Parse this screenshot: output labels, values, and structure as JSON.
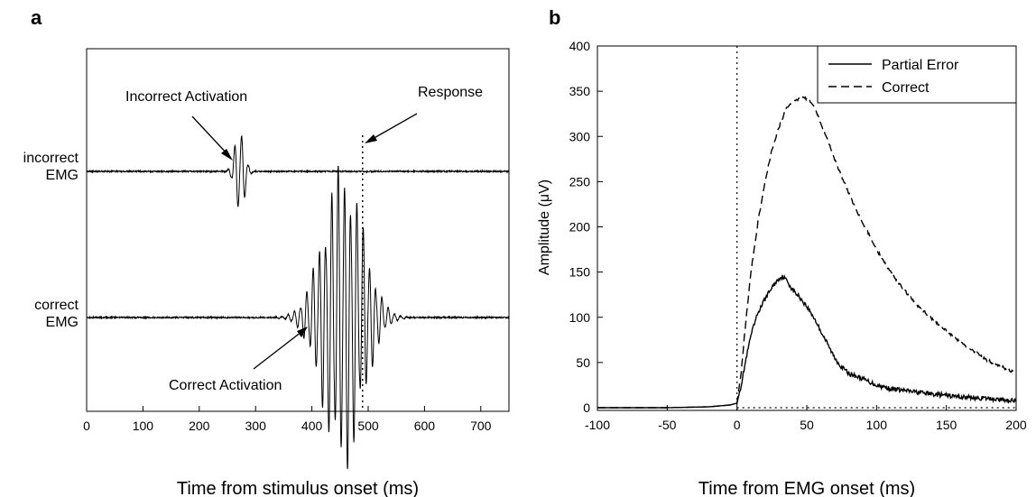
{
  "chart_data": [
    {
      "panel_label": "a",
      "type": "line",
      "xlabel": "Time from stimulus onset (ms)",
      "ylabel": "",
      "xlim": [
        0,
        750
      ],
      "xticks": [
        0,
        100,
        200,
        300,
        400,
        500,
        600,
        700
      ],
      "grid": false,
      "traces": [
        {
          "label_lines": [
            "incorrect",
            "EMG"
          ],
          "burst_center_ms": 272,
          "burst_amplitude_uV": 40,
          "burst_width_ms": 22
        },
        {
          "label_lines": [
            "correct",
            "EMG"
          ],
          "burst_center_ms": 455,
          "burst_amplitude_uV": 140,
          "burst_width_ms": 90
        }
      ],
      "response_line_ms": 490,
      "annotations": [
        {
          "text": "Incorrect Activation"
        },
        {
          "text": "Response"
        },
        {
          "text": "Correct Activation"
        }
      ]
    },
    {
      "panel_label": "b",
      "type": "line",
      "xlabel": "Time from EMG onset (ms)",
      "ylabel": "Amplitude (μV)",
      "xlim": [
        -100,
        200
      ],
      "ylim": [
        0,
        400
      ],
      "xticks": [
        -100,
        -50,
        0,
        50,
        100,
        150,
        200
      ],
      "yticks": [
        0,
        50,
        100,
        150,
        200,
        250,
        300,
        350,
        400
      ],
      "grid": false,
      "legend": "top-right",
      "reference_lines": {
        "x": 0,
        "y": 0
      },
      "series": [
        {
          "name": "Partial Error",
          "style": "solid",
          "x": [
            -100,
            -50,
            -20,
            -5,
            0,
            3,
            6,
            10,
            15,
            20,
            25,
            30,
            33,
            36,
            40,
            45,
            50,
            55,
            60,
            65,
            70,
            75,
            80,
            90,
            100,
            110,
            120,
            140,
            160,
            180,
            200
          ],
          "y": [
            0,
            0,
            1,
            3,
            5,
            25,
            50,
            80,
            105,
            120,
            133,
            143,
            145,
            140,
            130,
            122,
            112,
            100,
            85,
            70,
            55,
            45,
            38,
            32,
            25,
            21,
            19,
            15,
            12,
            10,
            8
          ]
        },
        {
          "name": "Correct",
          "style": "dashed",
          "x": [
            -100,
            -50,
            -20,
            -5,
            0,
            3,
            6,
            10,
            15,
            20,
            25,
            30,
            35,
            40,
            45,
            48,
            52,
            56,
            60,
            65,
            70,
            75,
            80,
            85,
            90,
            100,
            110,
            120,
            130,
            140,
            150,
            160,
            170,
            180,
            190,
            200
          ],
          "y": [
            0,
            0,
            1,
            3,
            5,
            40,
            90,
            150,
            205,
            250,
            285,
            310,
            330,
            338,
            342,
            343,
            340,
            330,
            315,
            295,
            275,
            255,
            238,
            220,
            205,
            175,
            150,
            130,
            112,
            98,
            85,
            72,
            62,
            52,
            45,
            38
          ]
        }
      ]
    }
  ]
}
